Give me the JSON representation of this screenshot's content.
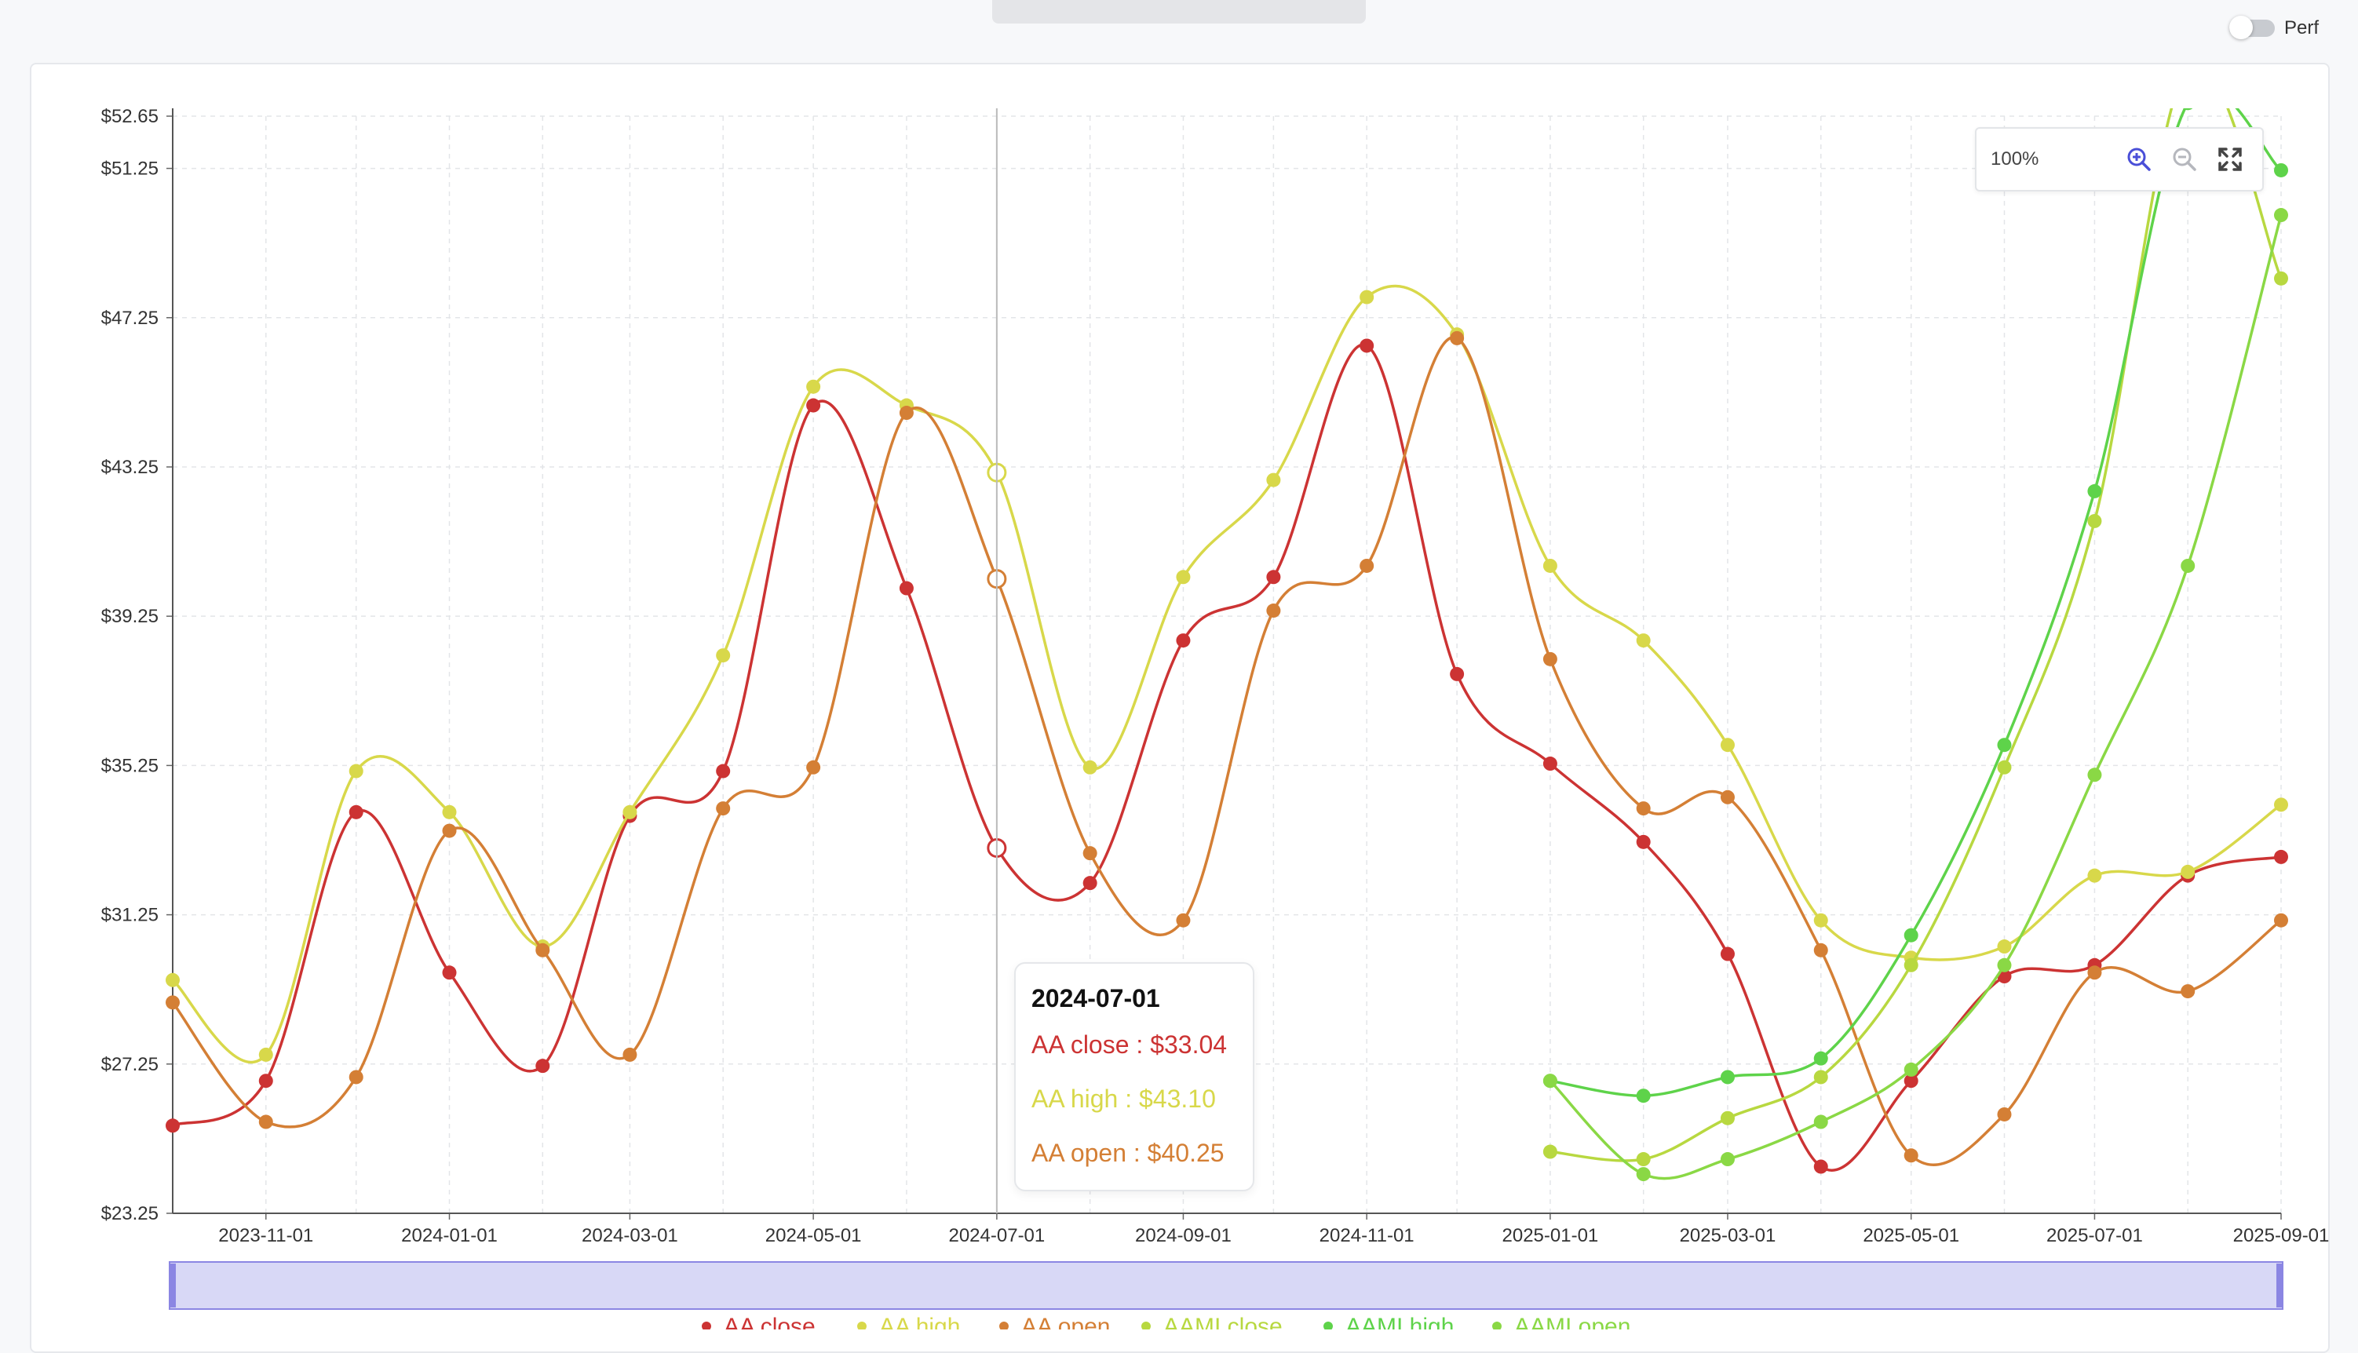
{
  "perf_toggle": {
    "label": "Perf",
    "on": false
  },
  "zoom": {
    "level": "100%",
    "zoom_in_icon": "zoom-in-icon",
    "zoom_out_icon": "zoom-out-icon",
    "fullscreen_icon": "fullscreen-icon"
  },
  "tooltip": {
    "date": "2024-07-01",
    "rows": [
      {
        "label": "AA close : $33.04",
        "color": "#cc3333"
      },
      {
        "label": "AA high : $43.10",
        "color": "#d8d84a"
      },
      {
        "label": "AA open : $40.25",
        "color": "#d47f35"
      }
    ]
  },
  "chart_data": {
    "type": "line",
    "title": "",
    "xlabel": "",
    "ylabel": "",
    "ylim": [
      23.25,
      52.65
    ],
    "yticks": [
      "$23.25",
      "$27.25",
      "$31.25",
      "$35.25",
      "$39.25",
      "$43.25",
      "$47.25",
      "$51.25",
      "$52.65"
    ],
    "xticks": [
      "2023-11-01",
      "2024-01-01",
      "2024-03-01",
      "2024-05-01",
      "2024-07-01",
      "2024-09-01",
      "2024-11-01",
      "2025-01-01",
      "2025-03-01",
      "2025-05-01",
      "2025-07-01",
      "2025-09-01"
    ],
    "grid": true,
    "hover_date": "2024-07-01",
    "x": [
      "2023-10-01",
      "2023-11-01",
      "2023-12-01",
      "2024-01-01",
      "2024-02-01",
      "2024-03-01",
      "2024-04-01",
      "2024-05-01",
      "2024-06-01",
      "2024-07-01",
      "2024-08-01",
      "2024-09-01",
      "2024-10-01",
      "2024-11-01",
      "2024-12-01",
      "2025-01-01",
      "2025-02-01",
      "2025-03-01",
      "2025-04-01",
      "2025-05-01",
      "2025-06-01",
      "2025-07-01",
      "2025-08-01",
      "2025-09-01"
    ],
    "series": [
      {
        "name": "AA close",
        "color": "#cc3333",
        "values": [
          25.6,
          26.8,
          34.0,
          29.7,
          27.2,
          33.9,
          35.1,
          44.9,
          40.0,
          33.04,
          32.1,
          38.6,
          40.3,
          46.5,
          37.7,
          35.3,
          33.2,
          30.2,
          24.5,
          26.8,
          29.6,
          29.9,
          32.3,
          32.8
        ]
      },
      {
        "name": "AA high",
        "color": "#d8d84a",
        "values": [
          29.5,
          27.5,
          35.1,
          34.0,
          30.4,
          34.0,
          38.2,
          45.4,
          44.9,
          43.1,
          35.2,
          40.3,
          42.9,
          47.8,
          46.8,
          40.6,
          38.6,
          35.8,
          31.1,
          30.1,
          30.4,
          32.3,
          32.4,
          34.2
        ]
      },
      {
        "name": "AA open",
        "color": "#d47f35",
        "values": [
          28.9,
          25.7,
          26.9,
          33.5,
          30.3,
          27.5,
          34.1,
          35.2,
          44.7,
          40.25,
          32.9,
          31.1,
          39.4,
          40.6,
          46.7,
          38.1,
          34.1,
          34.4,
          30.3,
          24.8,
          25.9,
          29.7,
          29.2,
          31.1
        ]
      },
      {
        "name": "AAMI close",
        "color": "#b8d840",
        "values": [
          null,
          null,
          null,
          null,
          null,
          null,
          null,
          null,
          null,
          null,
          null,
          null,
          null,
          null,
          null,
          24.9,
          24.7,
          25.8,
          26.9,
          29.9,
          35.2,
          41.8,
          54.0,
          48.3
        ]
      },
      {
        "name": "AAMI high",
        "color": "#5ed34a",
        "values": [
          null,
          null,
          null,
          null,
          null,
          null,
          null,
          null,
          null,
          null,
          null,
          null,
          null,
          null,
          null,
          26.8,
          26.4,
          26.9,
          27.4,
          30.7,
          35.8,
          42.6,
          53.0,
          51.2
        ]
      },
      {
        "name": "AAMI open",
        "color": "#8ad845",
        "values": [
          null,
          null,
          null,
          null,
          null,
          null,
          null,
          null,
          null,
          null,
          null,
          null,
          null,
          null,
          null,
          26.8,
          24.3,
          24.7,
          25.7,
          27.1,
          29.9,
          35.0,
          40.6,
          50.0
        ]
      }
    ],
    "legend_position": "bottom"
  }
}
